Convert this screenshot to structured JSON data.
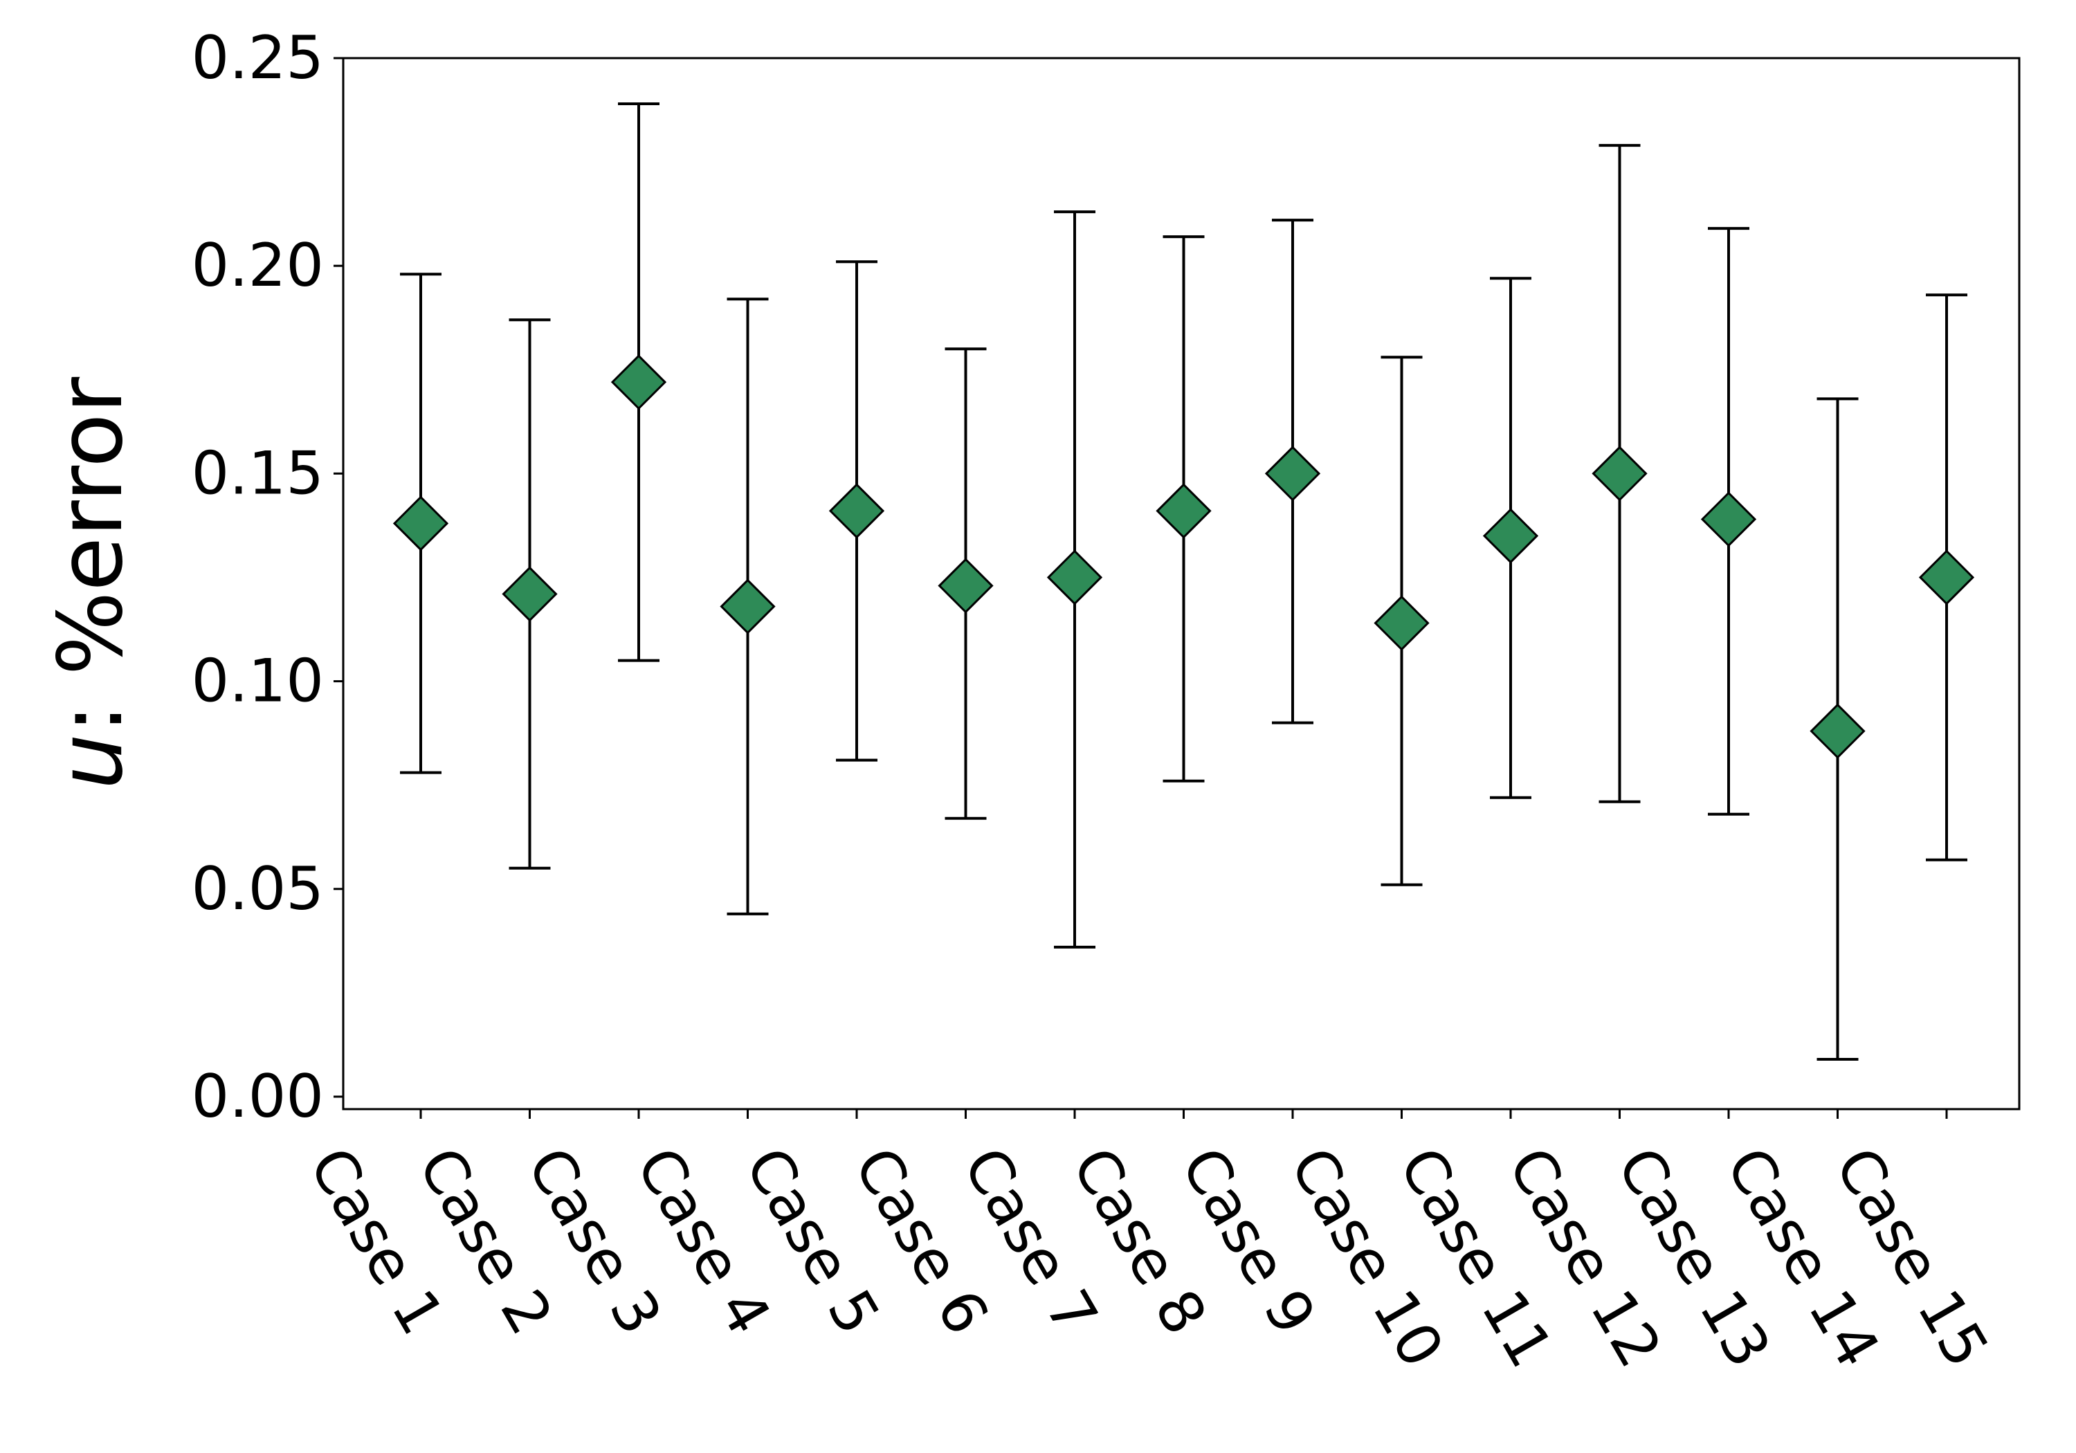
{
  "chart_data": {
    "type": "scatter",
    "style": "error-bar",
    "title": "",
    "xlabel": "",
    "ylabel_var": "u",
    "ylabel_rest": ": %error",
    "categories": [
      "Case 1",
      "Case 2",
      "Case 3",
      "Case 4",
      "Case 5",
      "Case 6",
      "Case 7",
      "Case 8",
      "Case 9",
      "Case 10",
      "Case 11",
      "Case 12",
      "Case 13",
      "Case 14",
      "Case 15"
    ],
    "values": [
      0.138,
      0.121,
      0.172,
      0.118,
      0.141,
      0.123,
      0.125,
      0.141,
      0.15,
      0.114,
      0.135,
      0.15,
      0.139,
      0.088,
      0.125
    ],
    "lower": [
      0.078,
      0.055,
      0.105,
      0.044,
      0.081,
      0.067,
      0.036,
      0.076,
      0.09,
      0.051,
      0.072,
      0.071,
      0.068,
      0.009,
      0.057
    ],
    "upper": [
      0.198,
      0.187,
      0.239,
      0.192,
      0.201,
      0.18,
      0.213,
      0.207,
      0.211,
      0.178,
      0.197,
      0.229,
      0.209,
      0.168,
      0.193
    ],
    "ylim": [
      -0.003,
      0.25
    ],
    "yticks": [
      "0.00",
      "0.05",
      "0.10",
      "0.15",
      "0.20",
      "0.25"
    ],
    "grid": false,
    "marker": "diamond",
    "marker_color": "#2e8b57",
    "errorbar_color": "#000000"
  }
}
